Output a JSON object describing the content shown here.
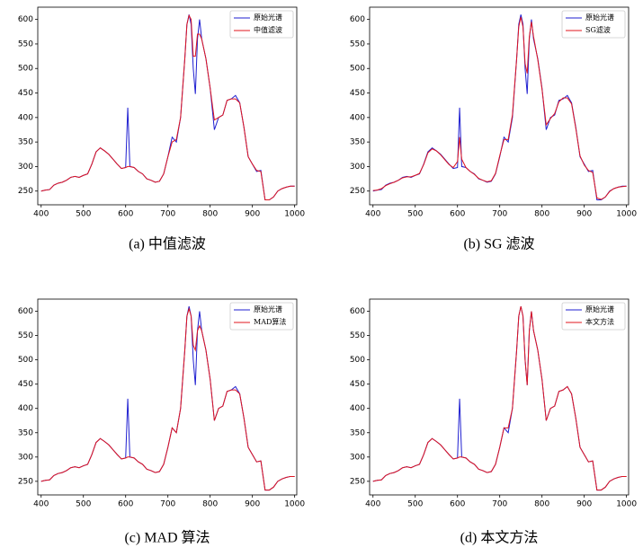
{
  "chart_data": [
    {
      "type": "line",
      "caption": "(a)  中值滤波",
      "xlim": [
        392,
        1005
      ],
      "ylim": [
        222,
        625
      ],
      "xticks": [
        400,
        500,
        600,
        700,
        800,
        900,
        1000
      ],
      "yticks": [
        250,
        300,
        350,
        400,
        450,
        500,
        550,
        600
      ],
      "x": [
        400,
        410,
        420,
        430,
        440,
        450,
        460,
        470,
        480,
        490,
        500,
        510,
        520,
        530,
        540,
        550,
        560,
        570,
        580,
        590,
        600,
        605,
        610,
        620,
        630,
        640,
        650,
        660,
        670,
        680,
        690,
        700,
        710,
        720,
        730,
        740,
        745,
        750,
        755,
        760,
        765,
        770,
        775,
        780,
        790,
        800,
        810,
        820,
        830,
        840,
        850,
        860,
        870,
        880,
        890,
        900,
        910,
        920,
        930,
        940,
        950,
        960,
        970,
        980,
        990,
        1000
      ],
      "series": [
        {
          "name": "原始光谱",
          "color": "#1f1fd0",
          "values": [
            250,
            252,
            253,
            262,
            266,
            268,
            272,
            278,
            280,
            278,
            282,
            285,
            305,
            330,
            338,
            332,
            325,
            315,
            305,
            296,
            298,
            420,
            300,
            298,
            290,
            285,
            275,
            272,
            268,
            270,
            285,
            320,
            360,
            350,
            400,
            520,
            590,
            610,
            590,
            500,
            448,
            560,
            600,
            560,
            520,
            460,
            375,
            400,
            405,
            435,
            438,
            445,
            430,
            380,
            320,
            305,
            290,
            292,
            232,
            232,
            238,
            250,
            255,
            258,
            260,
            260
          ]
        },
        {
          "name": "中值滤波",
          "color": "#e0141e",
          "values": [
            250,
            252,
            253,
            262,
            266,
            268,
            272,
            278,
            280,
            278,
            282,
            285,
            305,
            330,
            338,
            332,
            325,
            315,
            305,
            296,
            298,
            300,
            300,
            298,
            290,
            285,
            275,
            272,
            268,
            270,
            285,
            320,
            350,
            355,
            400,
            520,
            590,
            608,
            600,
            525,
            525,
            570,
            570,
            560,
            520,
            460,
            395,
            400,
            405,
            435,
            438,
            438,
            430,
            380,
            320,
            305,
            292,
            290,
            232,
            232,
            238,
            250,
            255,
            258,
            260,
            260
          ]
        }
      ]
    },
    {
      "type": "line",
      "caption": "(b)  SG 滤波",
      "xlim": [
        392,
        1005
      ],
      "ylim": [
        222,
        625
      ],
      "xticks": [
        400,
        500,
        600,
        700,
        800,
        900,
        1000
      ],
      "yticks": [
        250,
        300,
        350,
        400,
        450,
        500,
        550,
        600
      ],
      "x": [
        400,
        410,
        420,
        430,
        440,
        450,
        460,
        470,
        480,
        490,
        500,
        510,
        520,
        530,
        540,
        550,
        560,
        570,
        580,
        590,
        600,
        605,
        610,
        620,
        630,
        640,
        650,
        660,
        670,
        680,
        690,
        700,
        710,
        720,
        730,
        740,
        745,
        750,
        755,
        760,
        765,
        770,
        775,
        780,
        790,
        800,
        810,
        820,
        830,
        840,
        850,
        860,
        870,
        880,
        890,
        900,
        910,
        920,
        930,
        940,
        950,
        960,
        970,
        980,
        990,
        1000
      ],
      "series": [
        {
          "name": "原始光谱",
          "color": "#1f1fd0",
          "values": [
            250,
            252,
            253,
            262,
            266,
            268,
            272,
            278,
            280,
            278,
            282,
            285,
            305,
            330,
            338,
            332,
            325,
            315,
            305,
            296,
            298,
            420,
            300,
            298,
            290,
            285,
            275,
            272,
            268,
            270,
            285,
            320,
            360,
            350,
            400,
            520,
            590,
            610,
            590,
            500,
            448,
            560,
            600,
            560,
            520,
            460,
            375,
            400,
            405,
            435,
            438,
            445,
            430,
            380,
            320,
            305,
            290,
            292,
            232,
            232,
            238,
            250,
            255,
            258,
            260,
            260
          ]
        },
        {
          "name": "SG滤波",
          "color": "#e0141e",
          "values": [
            251,
            252,
            255,
            261,
            265,
            268,
            272,
            277,
            279,
            279,
            282,
            286,
            304,
            328,
            336,
            332,
            324,
            314,
            304,
            298,
            310,
            360,
            315,
            298,
            290,
            284,
            276,
            272,
            269,
            271,
            286,
            322,
            355,
            355,
            405,
            520,
            585,
            605,
            585,
            510,
            490,
            565,
            595,
            565,
            518,
            458,
            385,
            398,
            408,
            432,
            440,
            440,
            428,
            378,
            322,
            303,
            292,
            288,
            236,
            233,
            238,
            249,
            255,
            258,
            259,
            260
          ]
        }
      ]
    },
    {
      "type": "line",
      "caption": "(c)  MAD 算法",
      "xlim": [
        392,
        1005
      ],
      "ylim": [
        222,
        625
      ],
      "xticks": [
        400,
        500,
        600,
        700,
        800,
        900,
        1000
      ],
      "yticks": [
        250,
        300,
        350,
        400,
        450,
        500,
        550,
        600
      ],
      "x": [
        400,
        410,
        420,
        430,
        440,
        450,
        460,
        470,
        480,
        490,
        500,
        510,
        520,
        530,
        540,
        550,
        560,
        570,
        580,
        590,
        600,
        605,
        610,
        620,
        630,
        640,
        650,
        660,
        670,
        680,
        690,
        700,
        710,
        720,
        730,
        740,
        745,
        750,
        755,
        760,
        765,
        770,
        775,
        780,
        790,
        800,
        810,
        820,
        830,
        840,
        850,
        860,
        870,
        880,
        890,
        900,
        910,
        920,
        930,
        940,
        950,
        960,
        970,
        980,
        990,
        1000
      ],
      "series": [
        {
          "name": "原始光谱",
          "color": "#1f1fd0",
          "values": [
            250,
            252,
            253,
            262,
            266,
            268,
            272,
            278,
            280,
            278,
            282,
            285,
            305,
            330,
            338,
            332,
            325,
            315,
            305,
            296,
            298,
            420,
            300,
            298,
            290,
            285,
            275,
            272,
            268,
            270,
            285,
            320,
            360,
            350,
            400,
            520,
            590,
            610,
            590,
            500,
            448,
            560,
            600,
            560,
            520,
            460,
            375,
            400,
            405,
            435,
            438,
            445,
            430,
            380,
            320,
            305,
            290,
            292,
            232,
            232,
            238,
            250,
            255,
            258,
            260,
            260
          ]
        },
        {
          "name": "MAD算法",
          "color": "#e0141e",
          "values": [
            250,
            252,
            253,
            262,
            266,
            268,
            272,
            278,
            280,
            278,
            282,
            285,
            305,
            330,
            338,
            332,
            325,
            315,
            305,
            296,
            298,
            300,
            300,
            298,
            290,
            285,
            275,
            272,
            268,
            270,
            285,
            320,
            360,
            350,
            400,
            520,
            590,
            605,
            590,
            530,
            520,
            560,
            570,
            560,
            520,
            460,
            375,
            400,
            405,
            435,
            438,
            438,
            430,
            380,
            320,
            305,
            290,
            292,
            232,
            232,
            238,
            250,
            255,
            258,
            260,
            260
          ]
        }
      ]
    },
    {
      "type": "line",
      "caption": "(d)  本文方法",
      "xlim": [
        392,
        1005
      ],
      "ylim": [
        222,
        625
      ],
      "xticks": [
        400,
        500,
        600,
        700,
        800,
        900,
        1000
      ],
      "yticks": [
        250,
        300,
        350,
        400,
        450,
        500,
        550,
        600
      ],
      "x": [
        400,
        410,
        420,
        430,
        440,
        450,
        460,
        470,
        480,
        490,
        500,
        510,
        520,
        530,
        540,
        550,
        560,
        570,
        580,
        590,
        600,
        605,
        610,
        620,
        630,
        640,
        650,
        660,
        670,
        680,
        690,
        700,
        710,
        720,
        730,
        740,
        745,
        750,
        755,
        760,
        765,
        770,
        775,
        780,
        790,
        800,
        810,
        820,
        830,
        840,
        850,
        860,
        870,
        880,
        890,
        900,
        910,
        920,
        930,
        940,
        950,
        960,
        970,
        980,
        990,
        1000
      ],
      "series": [
        {
          "name": "原始光谱",
          "color": "#1f1fd0",
          "values": [
            250,
            252,
            253,
            262,
            266,
            268,
            272,
            278,
            280,
            278,
            282,
            285,
            305,
            330,
            338,
            332,
            325,
            315,
            305,
            296,
            298,
            420,
            300,
            298,
            290,
            285,
            275,
            272,
            268,
            270,
            285,
            320,
            360,
            350,
            400,
            520,
            590,
            610,
            590,
            500,
            448,
            560,
            600,
            560,
            520,
            460,
            375,
            400,
            405,
            435,
            438,
            445,
            430,
            380,
            320,
            305,
            290,
            292,
            232,
            232,
            238,
            250,
            255,
            258,
            260,
            260
          ]
        },
        {
          "name": "本文方法",
          "color": "#e0141e",
          "values": [
            250,
            252,
            253,
            262,
            266,
            268,
            272,
            278,
            280,
            278,
            282,
            285,
            305,
            330,
            338,
            332,
            325,
            315,
            305,
            296,
            298,
            300,
            300,
            298,
            290,
            285,
            275,
            272,
            268,
            270,
            285,
            320,
            360,
            360,
            400,
            520,
            590,
            610,
            590,
            500,
            448,
            560,
            600,
            560,
            520,
            460,
            375,
            400,
            405,
            435,
            438,
            445,
            430,
            380,
            320,
            305,
            290,
            292,
            232,
            232,
            238,
            250,
            255,
            258,
            260,
            260
          ]
        }
      ]
    }
  ]
}
